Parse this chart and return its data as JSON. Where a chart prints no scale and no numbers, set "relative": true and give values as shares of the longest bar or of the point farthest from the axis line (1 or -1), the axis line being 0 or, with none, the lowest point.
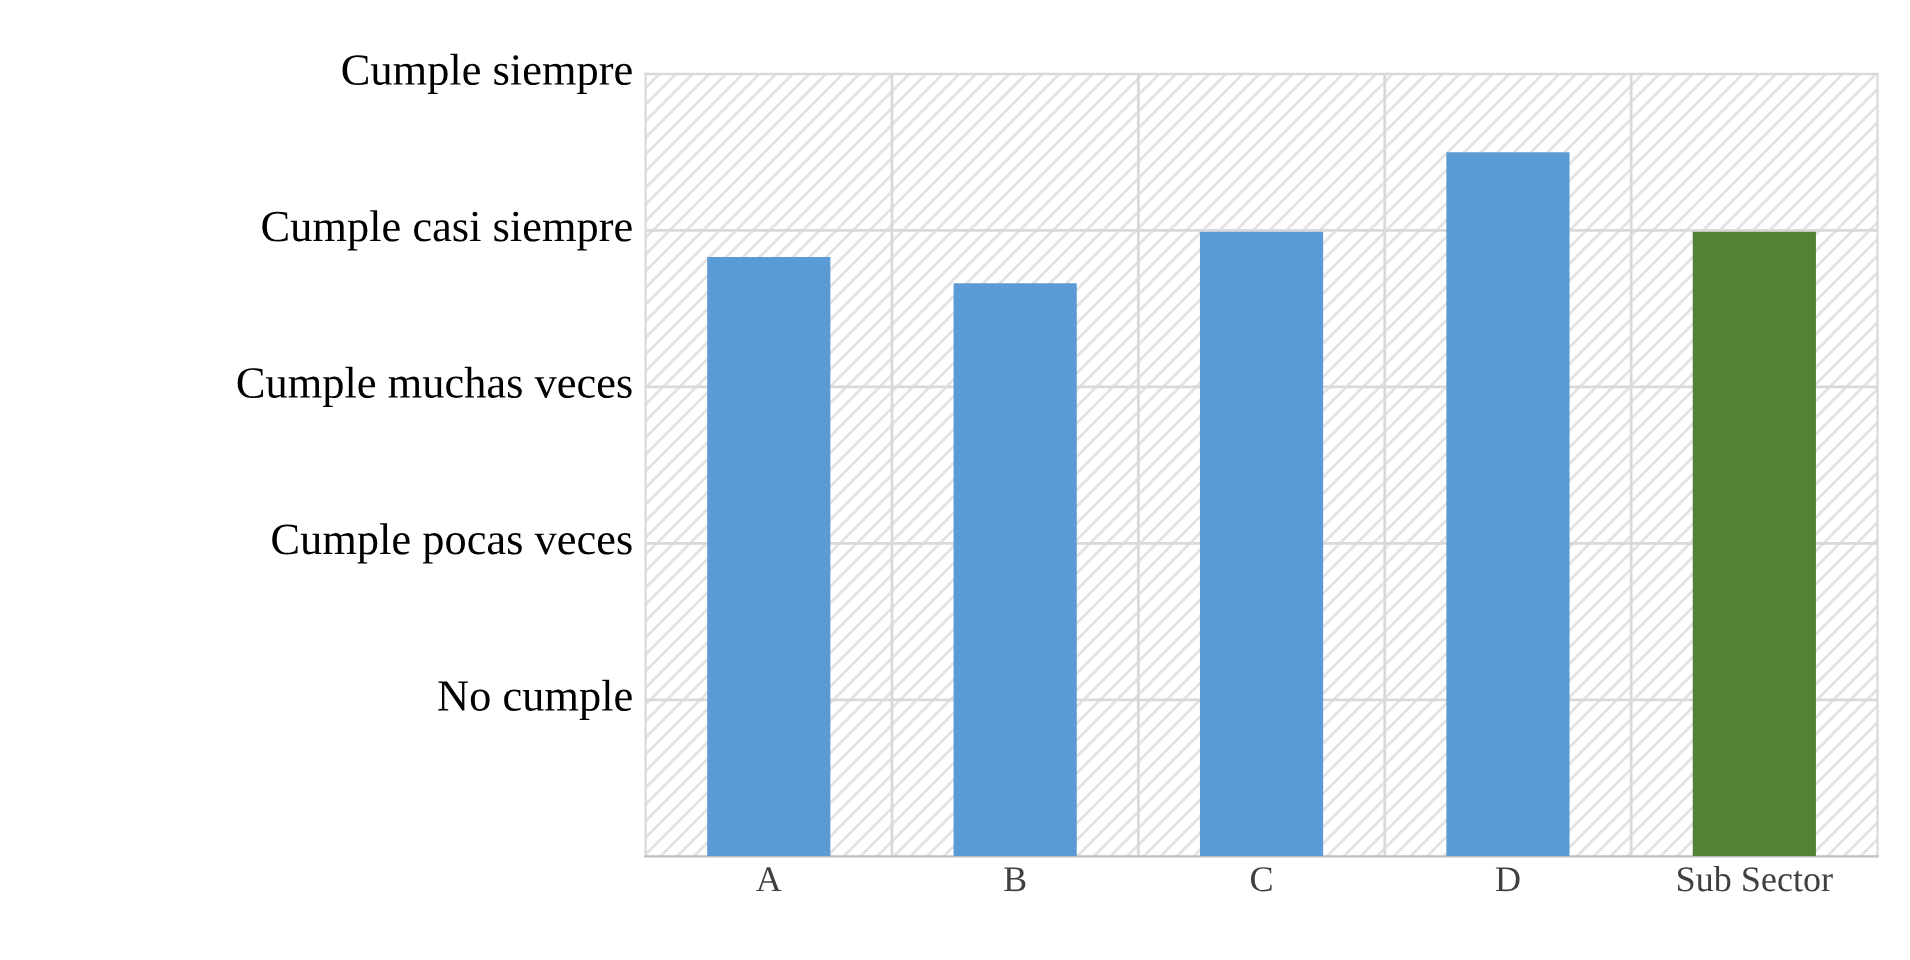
{
  "chart_data": {
    "type": "bar",
    "relative": true,
    "categories": [
      "A",
      "B",
      "C",
      "D",
      "Sub Sector"
    ],
    "values": [
      0.851,
      0.814,
      0.887,
      1,
      0.887
    ],
    "colors": [
      "#5b9bd5",
      "#5b9bd5",
      "#5b9bd5",
      "#5b9bd5",
      "#548235"
    ],
    "annotations": [
      "No cumple",
      "Cumple pocas veces",
      "Cumple muchas veces",
      "Cumple casi siempre",
      "Cumple siempre"
    ],
    "grid": true
  }
}
